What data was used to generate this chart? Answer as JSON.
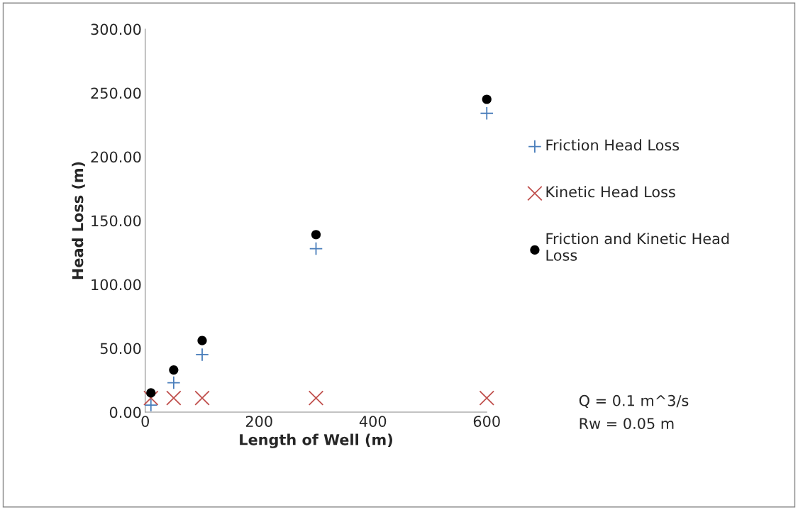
{
  "chart_data": {
    "type": "scatter",
    "xlabel": "Length of Well (m)",
    "ylabel": "Head Loss (m)",
    "x": [
      10,
      50,
      100,
      300,
      600
    ],
    "series": [
      {
        "name": "Friction Head Loss",
        "color": "#4a7ebb",
        "marker": "cross",
        "values": [
          5.5,
          23,
          45,
          128,
          234
        ]
      },
      {
        "name": "Kinetic Head Loss",
        "color": "#c0504d",
        "marker": "x",
        "values": [
          11,
          11,
          11,
          11,
          11
        ]
      },
      {
        "name": "Friction and Kinetic Head Loss",
        "color": "#000000",
        "marker": "circle",
        "values": [
          15,
          33,
          56,
          139,
          245
        ]
      }
    ],
    "xlim": [
      0,
      600
    ],
    "xticks": [
      0,
      200,
      400,
      600
    ],
    "ylim": [
      0,
      300
    ],
    "yticks": [
      {
        "value": 0,
        "label": "0.00"
      },
      {
        "value": 50,
        "label": "50.00"
      },
      {
        "value": 100,
        "label": "100.00"
      },
      {
        "value": 150,
        "label": "150.00"
      },
      {
        "value": 200,
        "label": "200.00"
      },
      {
        "value": 250,
        "label": "250.00"
      },
      {
        "value": 300,
        "label": "300.00"
      }
    ],
    "grid": false,
    "legend": "right",
    "annotations": [
      "Q = 0.1 m^3/s",
      "Rw = 0.05 m"
    ]
  }
}
